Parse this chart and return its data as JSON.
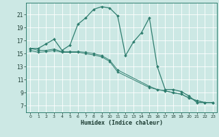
{
  "xlabel": "Humidex (Indice chaleur)",
  "background_color": "#cce8e4",
  "grid_color": "#ffffff",
  "line_color": "#2e7d6e",
  "xlim": [
    -0.5,
    23.5
  ],
  "ylim": [
    6.0,
    22.8
  ],
  "xticks": [
    0,
    1,
    2,
    3,
    4,
    5,
    6,
    7,
    8,
    9,
    10,
    11,
    12,
    13,
    14,
    15,
    16,
    17,
    18,
    19,
    20,
    21,
    22,
    23
  ],
  "yticks": [
    7,
    9,
    11,
    13,
    15,
    17,
    19,
    21
  ],
  "series1_x": [
    0,
    1,
    2,
    3,
    4,
    5,
    6,
    7,
    8,
    9,
    10,
    11,
    12,
    13,
    14,
    15,
    16,
    17,
    18,
    19,
    20,
    21,
    22,
    23
  ],
  "series1_y": [
    15.8,
    15.8,
    16.5,
    17.2,
    15.5,
    16.3,
    19.5,
    20.5,
    21.8,
    22.2,
    22.0,
    20.8,
    14.7,
    16.8,
    18.2,
    20.5,
    13.0,
    9.5,
    9.5,
    9.2,
    8.5,
    7.5,
    7.5,
    7.5
  ],
  "series2_x": [
    0,
    1,
    2,
    3,
    4,
    5,
    6,
    7,
    8,
    9,
    10,
    11,
    15,
    16,
    17,
    18,
    19,
    20,
    21,
    22,
    23
  ],
  "series2_y": [
    15.5,
    15.2,
    15.3,
    15.5,
    15.2,
    15.2,
    15.2,
    15.0,
    14.8,
    14.5,
    13.8,
    12.2,
    9.8,
    9.5,
    9.3,
    9.0,
    8.8,
    8.2,
    7.8,
    7.5,
    7.5
  ],
  "series3_x": [
    0,
    1,
    2,
    3,
    4,
    5,
    6,
    7,
    8,
    9,
    10,
    11,
    15,
    16,
    17,
    18,
    19,
    20,
    21,
    22,
    23
  ],
  "series3_y": [
    15.8,
    15.5,
    15.5,
    15.7,
    15.3,
    15.3,
    15.3,
    15.2,
    15.0,
    14.7,
    14.0,
    12.5,
    10.0,
    9.5,
    9.3,
    9.0,
    8.8,
    8.2,
    7.8,
    7.5,
    7.5
  ]
}
